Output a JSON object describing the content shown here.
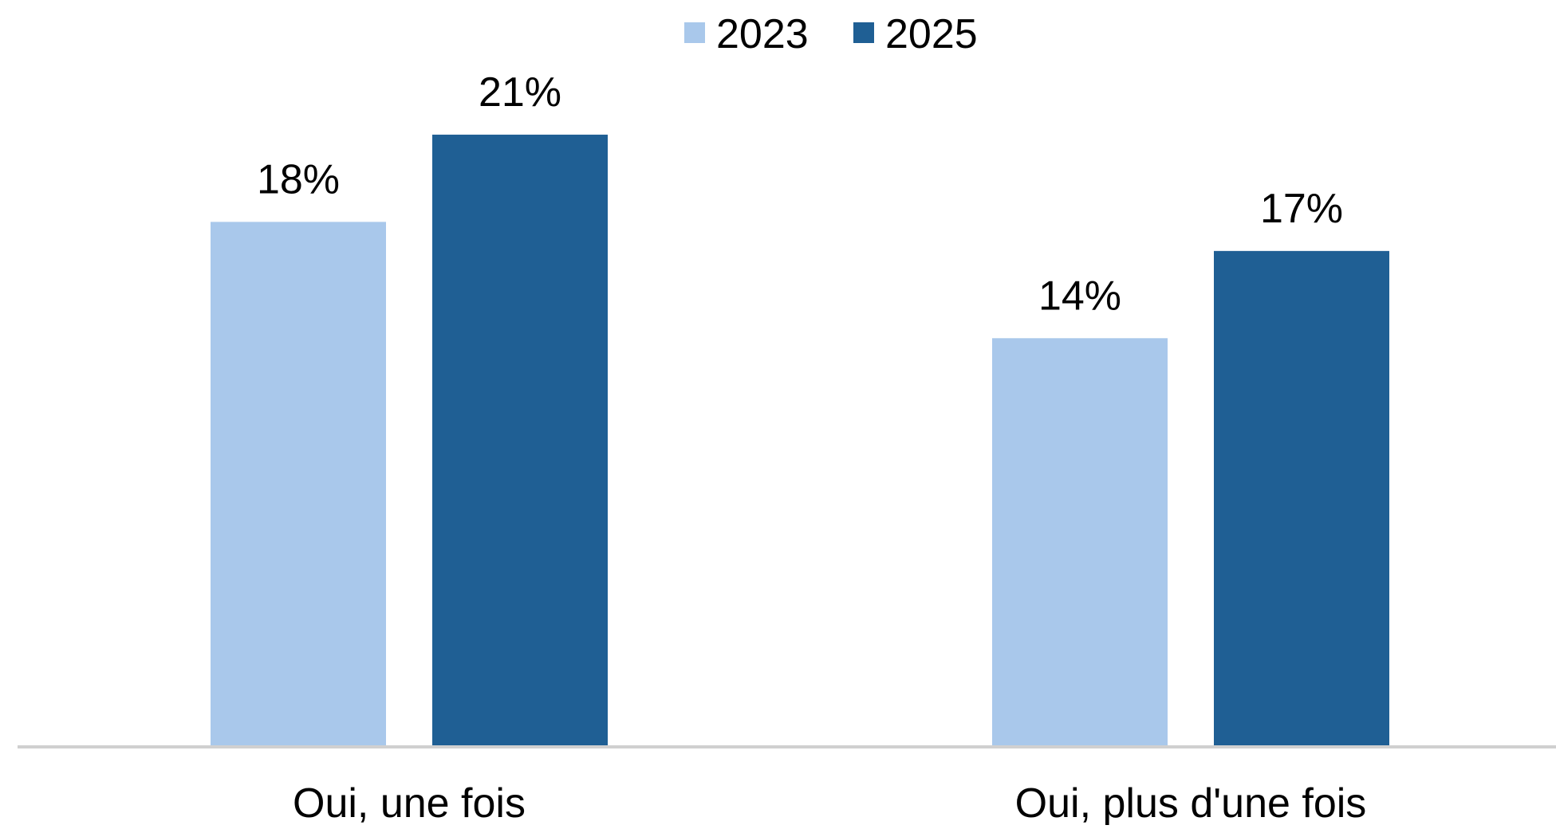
{
  "chart_data": {
    "type": "bar",
    "categories": [
      "Oui, une fois",
      "Oui, plus d'une fois"
    ],
    "series": [
      {
        "name": "2023",
        "color": "#a9c8eb",
        "values": [
          18,
          14
        ],
        "value_labels": [
          "18%",
          "14%"
        ]
      },
      {
        "name": "2025",
        "color": "#1f5f94",
        "values": [
          21,
          17
        ],
        "value_labels": [
          "21%",
          "17%"
        ]
      }
    ],
    "ylim": [
      0,
      25
    ],
    "legend": "top"
  }
}
